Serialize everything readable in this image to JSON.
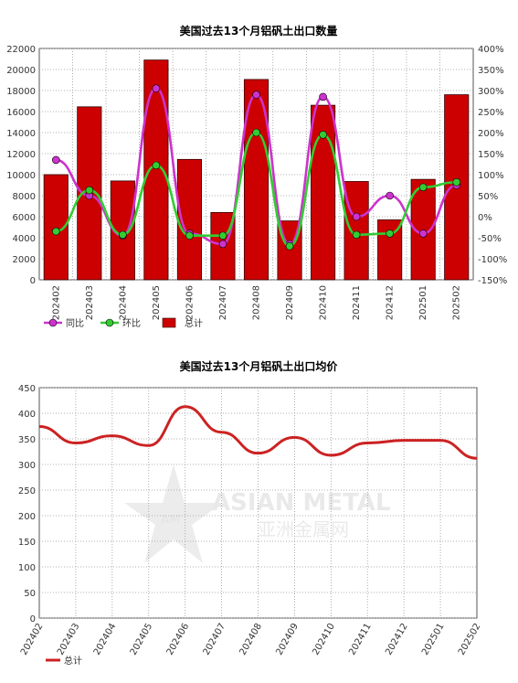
{
  "chart_data": [
    {
      "type": "bar",
      "title": "美国过去13个月铝矾土出口数量",
      "categories": [
        "202402",
        "202403",
        "202404",
        "202405",
        "202406",
        "202407",
        "202408",
        "202409",
        "202410",
        "202411",
        "202412",
        "202501",
        "202502"
      ],
      "ylim": [
        0,
        22000
      ],
      "y_ticks": [
        0,
        2000,
        4000,
        6000,
        8000,
        10000,
        12000,
        14000,
        16000,
        18000,
        20000,
        22000
      ],
      "y2lim": [
        -150,
        400
      ],
      "y2_ticks": [
        "-150%",
        "-100%",
        "-50%",
        "0%",
        "50%",
        "100%",
        "150%",
        "200%",
        "250%",
        "300%",
        "350%",
        "400%"
      ],
      "grid": true,
      "legend_position": "bottom-left",
      "series": [
        {
          "name": "同比",
          "type": "line",
          "axis": "right",
          "color": "#cc33cc",
          "values": [
            135,
            50,
            -45,
            305,
            -40,
            -65,
            290,
            -65,
            285,
            0,
            50,
            -40,
            75
          ]
        },
        {
          "name": "环比",
          "type": "line",
          "axis": "right",
          "color": "#33cc33",
          "values": [
            -35,
            63,
            -43,
            122,
            -45,
            -45,
            200,
            -70,
            195,
            -43,
            -40,
            70,
            82
          ]
        },
        {
          "name": "总计",
          "type": "bar",
          "axis": "left",
          "color": "#cc0000",
          "values": [
            10000,
            16450,
            9400,
            20900,
            11450,
            6400,
            19050,
            5600,
            16600,
            9350,
            5700,
            9550,
            17600
          ]
        }
      ]
    },
    {
      "type": "line",
      "title": "美国过去13个月铝矾土出口均价",
      "categories": [
        "202402",
        "202403",
        "202404",
        "202405",
        "202406",
        "202407",
        "202408",
        "202409",
        "202410",
        "202411",
        "202412",
        "202501",
        "202502"
      ],
      "ylim": [
        0,
        450
      ],
      "y_ticks": [
        0,
        50,
        100,
        150,
        200,
        250,
        300,
        350,
        400,
        450
      ],
      "grid": true,
      "legend_position": "bottom-left",
      "series": [
        {
          "name": "总计",
          "color": "#cc2222",
          "values": [
            374,
            342,
            356,
            337,
            413,
            363,
            322,
            353,
            318,
            342,
            347,
            347,
            312
          ]
        }
      ]
    }
  ],
  "watermark": {
    "brand": "ASIAN METAL",
    "brand_cn": "亚洲金属网",
    "logo": "AM"
  },
  "colors": {
    "bar": "#cc0000",
    "grid": "#888888",
    "axis": "#555555"
  }
}
